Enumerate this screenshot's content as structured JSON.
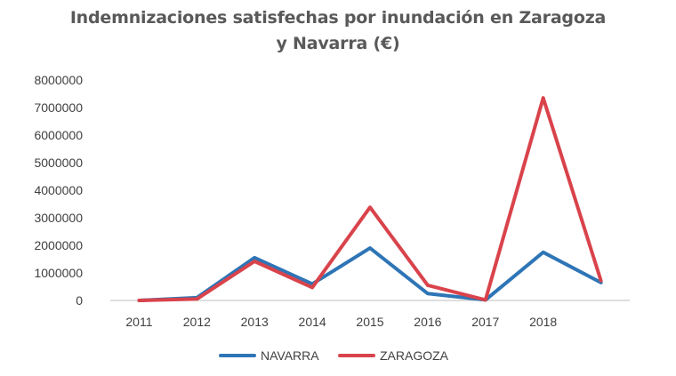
{
  "chart_data": {
    "type": "line",
    "title_lines": [
      "Indemnizaciones satisfechas por inundación en Zaragoza",
      "y Navarra  (€)"
    ],
    "xlabel": "",
    "ylabel": "",
    "categories": [
      "2011",
      "2012",
      "2013",
      "2014",
      "2015",
      "2016",
      "2017",
      "2018",
      ""
    ],
    "x_tick_labels": [
      "2011",
      "2012",
      "2013",
      "2014",
      "2015",
      "2016",
      "2017",
      "2018"
    ],
    "y_tick_labels": [
      "0",
      "1000000",
      "2000000",
      "3000000",
      "4000000",
      "5000000",
      "6000000",
      "7000000",
      "8000000"
    ],
    "ylim": [
      0,
      8000000
    ],
    "y_major_unit": 1000000,
    "grid": false,
    "legend_position": "bottom",
    "series": [
      {
        "name": "NAVARRA",
        "color": "#2E75B6",
        "values": [
          0,
          100000,
          1550000,
          600000,
          1900000,
          250000,
          20000,
          1750000,
          650000
        ]
      },
      {
        "name": "ZARAGOZA",
        "color": "#D9434B",
        "values": [
          0,
          50000,
          1420000,
          470000,
          3380000,
          550000,
          20000,
          7350000,
          720000
        ]
      }
    ]
  }
}
